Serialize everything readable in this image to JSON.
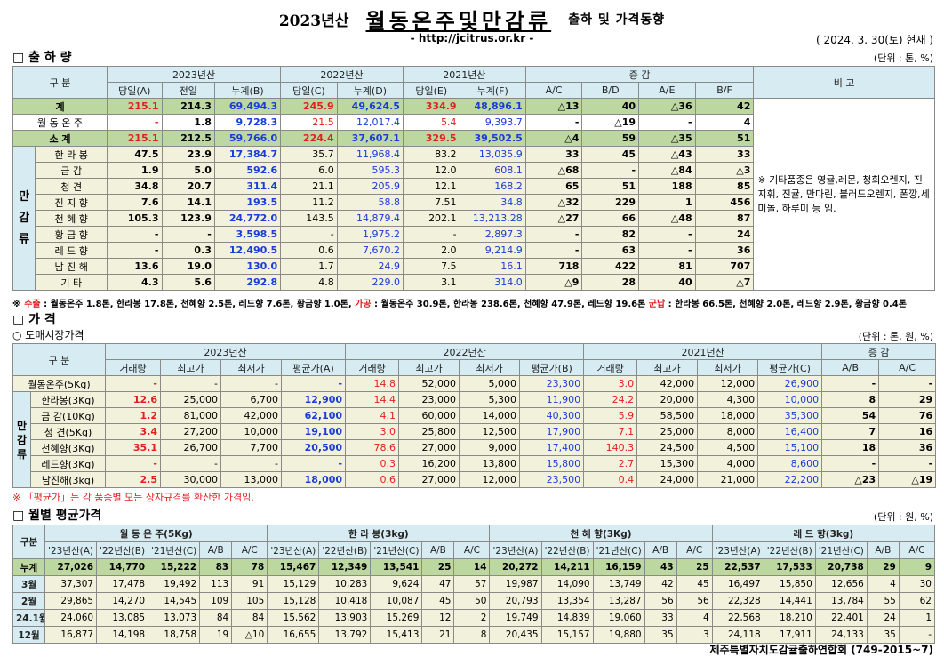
{
  "header": {
    "year": "2023년산",
    "main_title": "월동온주및만감류",
    "subtitle": "출하 및 가격동향",
    "url": "- http://jcitrus.or.kr -",
    "date": "( 2024.  3. 30(토) 현재 )"
  },
  "shipment": {
    "title": "□ 출 하 량",
    "unit": "(단위 : 톤, %)",
    "head": {
      "category": "구     분",
      "y2023": "2023년산",
      "y2022": "2022년산",
      "y2021": "2021년산",
      "change": "증     감",
      "remark": "비  고",
      "cols": [
        "당일(A)",
        "전일",
        "누계(B)",
        "당일(C)",
        "누계(D)",
        "당일(E)",
        "누계(F)",
        "A/C",
        "B/D",
        "A/E",
        "B/F"
      ]
    },
    "total": {
      "label": "계",
      "v": [
        "215.1",
        "214.3",
        "69,494.3",
        "245.9",
        "49,624.5",
        "334.9",
        "48,896.1",
        "△13",
        "40",
        "△36",
        "42"
      ]
    },
    "onju": {
      "label": "월 동 온 주",
      "v": [
        "-",
        "1.8",
        "9,728.3",
        "21.5",
        "12,017.4",
        "5.4",
        "9,393.7",
        "-",
        "△19",
        "-",
        "4"
      ]
    },
    "subtotal": {
      "label": "소    계",
      "v": [
        "215.1",
        "212.5",
        "59,766.0",
        "224.4",
        "37,607.1",
        "329.5",
        "39,502.5",
        "△4",
        "59",
        "△35",
        "51"
      ]
    },
    "side_label": "만감류",
    "rows": [
      {
        "label": "한 라 봉",
        "v": [
          "47.5",
          "23.9",
          "17,384.7",
          "35.7",
          "11,968.4",
          "83.2",
          "13,035.9",
          "33",
          "45",
          "△43",
          "33"
        ]
      },
      {
        "label": "금    감",
        "v": [
          "1.9",
          "5.0",
          "592.6",
          "6.0",
          "595.3",
          "12.0",
          "608.1",
          "△68",
          "-",
          "△84",
          "△3"
        ]
      },
      {
        "label": "청    견",
        "v": [
          "34.8",
          "20.7",
          "311.4",
          "21.1",
          "205.9",
          "12.1",
          "168.2",
          "65",
          "51",
          "188",
          "85"
        ]
      },
      {
        "label": "진 지 향",
        "v": [
          "7.6",
          "14.1",
          "193.5",
          "11.2",
          "58.8",
          "7.51",
          "34.8",
          "△32",
          "229",
          "1",
          "456"
        ]
      },
      {
        "label": "천 혜 향",
        "v": [
          "105.3",
          "123.9",
          "24,772.0",
          "143.5",
          "14,879.4",
          "202.1",
          "13,213.28",
          "△27",
          "66",
          "△48",
          "87"
        ]
      },
      {
        "label": "황 금 향",
        "v": [
          "-",
          "-",
          "3,598.5",
          "-",
          "1,975.2",
          "-",
          "2,897.3",
          "-",
          "82",
          "-",
          "24"
        ]
      },
      {
        "label": "레 드 향",
        "v": [
          "-",
          "0.3",
          "12,490.5",
          "0.6",
          "7,670.2",
          "2.0",
          "9,214.9",
          "-",
          "63",
          "-",
          "36"
        ]
      },
      {
        "label": "남 진 해",
        "v": [
          "13.6",
          "19.0",
          "130.0",
          "1.7",
          "24.9",
          "7.5",
          "16.1",
          "718",
          "422",
          "81",
          "707"
        ]
      },
      {
        "label": "기    타",
        "v": [
          "4.3",
          "5.6",
          "292.8",
          "4.8",
          "229.0",
          "3.1",
          "314.0",
          "△9",
          "28",
          "40",
          "△7"
        ]
      }
    ],
    "remark": "※ 기타품종은 영귤,레몬, 청희오렌지, 진지휘, 진귤, 만다린, 블러드오렌지, 폰깡,세미놀, 하루미 등 임.",
    "note": {
      "prefix": "※ ",
      "k1": "수출",
      "t1": " : 월동온주 1.8톤, 한라봉 17.8톤, 천혜향 2.5톤, 레드향 7.6톤, 황금향 1.0톤, ",
      "k2": "가공",
      "t2": " : 월동온주 30.9톤, 한라봉 238.6톤, 천혜향 47.9톤, 레드향 19.6톤 ",
      "k3": "군납",
      "t3": " : 한라봉 66.5톤, 천혜향 2.0톤, 레드향 2.9톤, 황금향 0.4톤"
    }
  },
  "price": {
    "title": "□ 가    격",
    "sub": "○ 도매시장가격",
    "unit": "(단위 : 톤, 원, %)",
    "head": {
      "category": "구     분",
      "y2023": "2023년산",
      "y2022": "2022년산",
      "y2021": "2021년산",
      "change": "증    감",
      "cols": [
        "거래량",
        "최고가",
        "최저가",
        "평균가(A)",
        "거래량",
        "최고가",
        "최저가",
        "평균가(B)",
        "거래량",
        "최고가",
        "최저가",
        "평균가(C)",
        "A/B",
        "A/C"
      ]
    },
    "onju": {
      "label": "월동온주(5Kg)",
      "v": [
        "-",
        "-",
        "-",
        "-",
        "14.8",
        "52,000",
        "5,000",
        "23,300",
        "3.0",
        "42,000",
        "12,000",
        "26,900",
        "-",
        "-"
      ]
    },
    "side_label": "만감류",
    "rows": [
      {
        "label": "한라봉(3Kg)",
        "v": [
          "12.6",
          "25,000",
          "6,700",
          "12,900",
          "14.4",
          "23,000",
          "5,300",
          "11,900",
          "24.2",
          "20,000",
          "4,300",
          "10,000",
          "8",
          "29"
        ]
      },
      {
        "label": "금 감(10Kg)",
        "v": [
          "1.2",
          "81,000",
          "42,000",
          "62,100",
          "4.1",
          "60,000",
          "14,000",
          "40,300",
          "5.9",
          "58,500",
          "18,000",
          "35,300",
          "54",
          "76"
        ]
      },
      {
        "label": "청  견(5Kg)",
        "v": [
          "3.4",
          "27,200",
          "10,000",
          "19,100",
          "3.0",
          "25,800",
          "12,500",
          "17,900",
          "7.1",
          "25,000",
          "8,000",
          "16,400",
          "7",
          "16"
        ]
      },
      {
        "label": "천혜향(3Kg)",
        "v": [
          "35.1",
          "26,700",
          "7,700",
          "20,500",
          "78.6",
          "27,000",
          "9,000",
          "17,400",
          "140.3",
          "24,500",
          "4,500",
          "15,100",
          "18",
          "36"
        ]
      },
      {
        "label": "레드향(3Kg)",
        "v": [
          "-",
          "-",
          "-",
          "-",
          "0.3",
          "16,200",
          "13,800",
          "15,800",
          "2.7",
          "15,300",
          "4,000",
          "8,600",
          "-",
          "-"
        ]
      },
      {
        "label": "남진해(3kg)",
        "v": [
          "2.5",
          "30,000",
          "13,000",
          "18,000",
          "0.6",
          "27,000",
          "12,000",
          "23,500",
          "0.4",
          "24,000",
          "21,000",
          "22,200",
          "△23",
          "△19"
        ]
      }
    ],
    "note": "※ 「평균가」는 각 품종별 모든 상자규격를 환산한 가격임."
  },
  "monthly": {
    "title": "□ 월별 평균가격",
    "unit": "(단위 : 원, %)",
    "category": "구분",
    "groups": [
      "월 동 온 주(5Kg)",
      "한  라  봉(3kg)",
      "천 혜 향(3Kg)",
      "레 드 향(3kg)"
    ],
    "cols": [
      "'23년산(A)",
      "'22년산(B)",
      "'21년산(C)",
      "A/B",
      "A/C"
    ],
    "rows": [
      {
        "label": "누계",
        "v": [
          "27,026",
          "14,770",
          "15,222",
          "83",
          "78",
          "15,467",
          "12,349",
          "13,541",
          "25",
          "14",
          "20,272",
          "14,211",
          "16,159",
          "43",
          "25",
          "22,537",
          "17,533",
          "20,738",
          "29",
          "9"
        ]
      },
      {
        "label": "3월",
        "v": [
          "37,307",
          "17,478",
          "19,492",
          "113",
          "91",
          "15,129",
          "10,283",
          "9,624",
          "47",
          "57",
          "19,987",
          "14,090",
          "13,749",
          "42",
          "45",
          "16,497",
          "15,850",
          "12,656",
          "4",
          "30"
        ]
      },
      {
        "label": "2월",
        "v": [
          "29,865",
          "14,270",
          "14,545",
          "109",
          "105",
          "15,128",
          "10,418",
          "10,087",
          "45",
          "50",
          "20,793",
          "13,354",
          "13,287",
          "56",
          "56",
          "22,328",
          "14,441",
          "13,784",
          "55",
          "62"
        ]
      },
      {
        "label": "24.1월",
        "v": [
          "24,060",
          "13,085",
          "13,073",
          "84",
          "84",
          "15,562",
          "13,903",
          "15,269",
          "12",
          "2",
          "19,749",
          "14,839",
          "19,060",
          "33",
          "4",
          "22,568",
          "18,210",
          "22,401",
          "24",
          "1"
        ]
      },
      {
        "label": "12월",
        "v": [
          "16,877",
          "14,198",
          "18,758",
          "19",
          "△10",
          "16,655",
          "13,792",
          "15,413",
          "21",
          "8",
          "20,435",
          "15,157",
          "19,880",
          "35",
          "3",
          "24,118",
          "17,911",
          "24,133",
          "35",
          "-"
        ]
      }
    ]
  },
  "footer": "제주특별자치도감귤출하연합회 (749-2015~7)",
  "colors": {
    "header_bg": "#d6ecf2",
    "total_bg": "#bdd7a0",
    "row_bg": "#f2f2dc",
    "red": "#e02020",
    "blue": "#1a3bd9"
  }
}
